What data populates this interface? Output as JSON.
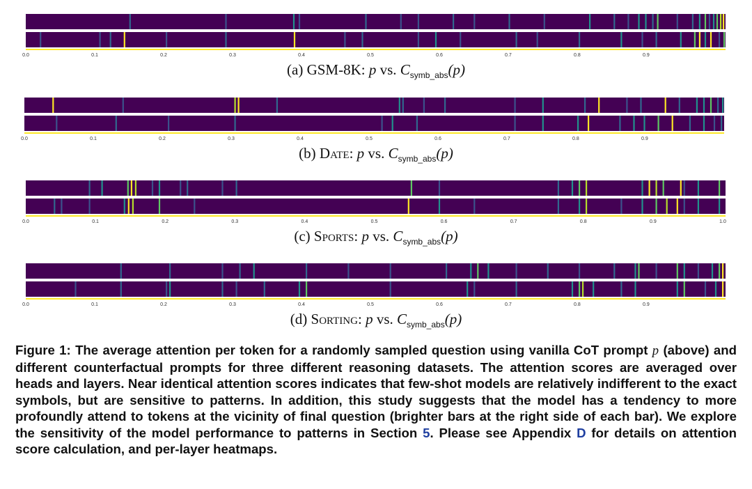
{
  "panels": [
    {
      "id": "gsm8k",
      "caption": {
        "label": "(a)",
        "dataset": "GSM-8K",
        "p": "p",
        "vs": "vs.",
        "c": "C",
        "sub": "symb_abs",
        "arg": "(p)"
      },
      "ticks": [
        "0.0",
        "0.1",
        "0.2",
        "0.3",
        "0.4",
        "0.5",
        "0.6",
        "0.7",
        "0.8",
        "0.9"
      ],
      "rows": [
        {
          "lines": [
            [
              0.148,
              "#31688e"
            ],
            [
              0.285,
              "#3b528b"
            ],
            [
              0.382,
              "#21918c"
            ],
            [
              0.39,
              "#3b528b"
            ],
            [
              0.485,
              "#31688e"
            ],
            [
              0.535,
              "#3b528b"
            ],
            [
              0.56,
              "#3b528b"
            ],
            [
              0.61,
              "#31688e"
            ],
            [
              0.64,
              "#3b528b"
            ],
            [
              0.69,
              "#31688e"
            ],
            [
              0.74,
              "#3b528b"
            ],
            [
              0.805,
              "#21918c"
            ],
            [
              0.84,
              "#31688e"
            ],
            [
              0.86,
              "#3b528b"
            ],
            [
              0.875,
              "#21918c"
            ],
            [
              0.885,
              "#21918c"
            ],
            [
              0.895,
              "#31688e"
            ],
            [
              0.902,
              "#5ec962"
            ],
            [
              0.93,
              "#3b528b"
            ],
            [
              0.952,
              "#31688e"
            ],
            [
              0.962,
              "#21918c"
            ],
            [
              0.97,
              "#5ec962"
            ],
            [
              0.976,
              "#3b528b"
            ],
            [
              0.982,
              "#21918c"
            ],
            [
              0.987,
              "#5ec962"
            ],
            [
              0.992,
              "#b5de2b"
            ],
            [
              0.996,
              "#fde725"
            ]
          ]
        },
        {
          "lines": [
            [
              0.02,
              "#3b528b"
            ],
            [
              0.105,
              "#3b528b"
            ],
            [
              0.12,
              "#31688e"
            ],
            [
              0.14,
              "#fde725"
            ],
            [
              0.2,
              "#3b528b"
            ],
            [
              0.285,
              "#31688e"
            ],
            [
              0.383,
              "#fde725"
            ],
            [
              0.455,
              "#3b528b"
            ],
            [
              0.48,
              "#31688e"
            ],
            [
              0.56,
              "#3b528b"
            ],
            [
              0.585,
              "#21918c"
            ],
            [
              0.62,
              "#3b528b"
            ],
            [
              0.7,
              "#31688e"
            ],
            [
              0.73,
              "#3b528b"
            ],
            [
              0.79,
              "#31688e"
            ],
            [
              0.85,
              "#21918c"
            ],
            [
              0.88,
              "#3b528b"
            ],
            [
              0.9,
              "#31688e"
            ],
            [
              0.935,
              "#21918c"
            ],
            [
              0.955,
              "#5ec962"
            ],
            [
              0.962,
              "#fde725"
            ],
            [
              0.97,
              "#21918c"
            ],
            [
              0.978,
              "#fde725"
            ],
            [
              0.99,
              "#3b528b"
            ],
            [
              0.997,
              "#5ec962"
            ]
          ]
        }
      ]
    },
    {
      "id": "date",
      "caption": {
        "label": "(b)",
        "dataset": "Date",
        "p": "p",
        "vs": "vs.",
        "c": "C",
        "sub": "symb_abs",
        "arg": "(p)"
      },
      "ticks": [
        "0.0",
        "0.1",
        "0.2",
        "0.3",
        "0.4",
        "0.5",
        "0.6",
        "0.7",
        "0.8",
        "0.9"
      ],
      "rows": [
        {
          "lines": [
            [
              0.04,
              "#fde725"
            ],
            [
              0.14,
              "#3b528b"
            ],
            [
              0.3,
              "#b5de2b"
            ],
            [
              0.305,
              "#fde725"
            ],
            [
              0.36,
              "#31688e"
            ],
            [
              0.535,
              "#21918c"
            ],
            [
              0.54,
              "#31688e"
            ],
            [
              0.57,
              "#3b528b"
            ],
            [
              0.6,
              "#31688e"
            ],
            [
              0.7,
              "#3b528b"
            ],
            [
              0.74,
              "#21918c"
            ],
            [
              0.8,
              "#31688e"
            ],
            [
              0.82,
              "#fde725"
            ],
            [
              0.86,
              "#3b528b"
            ],
            [
              0.88,
              "#31688e"
            ],
            [
              0.915,
              "#fde725"
            ],
            [
              0.935,
              "#31688e"
            ],
            [
              0.96,
              "#21918c"
            ],
            [
              0.97,
              "#21918c"
            ],
            [
              0.98,
              "#5ec962"
            ],
            [
              0.99,
              "#31688e"
            ],
            [
              0.997,
              "#21918c"
            ]
          ]
        },
        {
          "lines": [
            [
              0.045,
              "#3b528b"
            ],
            [
              0.13,
              "#31688e"
            ],
            [
              0.205,
              "#3b528b"
            ],
            [
              0.3,
              "#31688e"
            ],
            [
              0.51,
              "#3b528b"
            ],
            [
              0.525,
              "#21918c"
            ],
            [
              0.56,
              "#31688e"
            ],
            [
              0.7,
              "#3b528b"
            ],
            [
              0.74,
              "#21918c"
            ],
            [
              0.79,
              "#21918c"
            ],
            [
              0.805,
              "#fde725"
            ],
            [
              0.85,
              "#31688e"
            ],
            [
              0.87,
              "#21918c"
            ],
            [
              0.885,
              "#21918c"
            ],
            [
              0.905,
              "#5ec962"
            ],
            [
              0.925,
              "#fde725"
            ],
            [
              0.95,
              "#31688e"
            ],
            [
              0.97,
              "#21918c"
            ],
            [
              0.985,
              "#3b528b"
            ],
            [
              0.995,
              "#31688e"
            ]
          ]
        }
      ]
    },
    {
      "id": "sports",
      "caption": {
        "label": "(c)",
        "dataset": "Sports",
        "p": "p",
        "vs": "vs.",
        "c": "C",
        "sub": "symb_abs",
        "arg": "(p)"
      },
      "ticks": [
        "0.0",
        "0.1",
        "0.2",
        "0.3",
        "0.4",
        "0.5",
        "0.6",
        "0.7",
        "0.8",
        "0.9",
        "1.0"
      ],
      "rows": [
        {
          "lines": [
            [
              0.09,
              "#31688e"
            ],
            [
              0.108,
              "#21918c"
            ],
            [
              0.145,
              "#5ec962"
            ],
            [
              0.15,
              "#fde725"
            ],
            [
              0.156,
              "#b5de2b"
            ],
            [
              0.18,
              "#3b528b"
            ],
            [
              0.19,
              "#21918c"
            ],
            [
              0.22,
              "#3b528b"
            ],
            [
              0.23,
              "#31688e"
            ],
            [
              0.28,
              "#3b528b"
            ],
            [
              0.3,
              "#31688e"
            ],
            [
              0.55,
              "#5ec962"
            ],
            [
              0.59,
              "#3b528b"
            ],
            [
              0.76,
              "#31688e"
            ],
            [
              0.78,
              "#21918c"
            ],
            [
              0.79,
              "#5ec962"
            ],
            [
              0.8,
              "#b5de2b"
            ],
            [
              0.88,
              "#21918c"
            ],
            [
              0.89,
              "#fde725"
            ],
            [
              0.9,
              "#b5de2b"
            ],
            [
              0.91,
              "#5ec962"
            ],
            [
              0.935,
              "#fde725"
            ],
            [
              0.94,
              "#3b528b"
            ],
            [
              0.96,
              "#21918c"
            ],
            [
              0.99,
              "#5ec962"
            ]
          ]
        },
        {
          "lines": [
            [
              0.04,
              "#31688e"
            ],
            [
              0.05,
              "#3b528b"
            ],
            [
              0.09,
              "#3b528b"
            ],
            [
              0.14,
              "#21918c"
            ],
            [
              0.146,
              "#fde725"
            ],
            [
              0.152,
              "#b5de2b"
            ],
            [
              0.19,
              "#5ec962"
            ],
            [
              0.24,
              "#3b528b"
            ],
            [
              0.546,
              "#fde725"
            ],
            [
              0.59,
              "#21918c"
            ],
            [
              0.64,
              "#3b528b"
            ],
            [
              0.76,
              "#31688e"
            ],
            [
              0.79,
              "#21918c"
            ],
            [
              0.8,
              "#b5de2b"
            ],
            [
              0.85,
              "#3b528b"
            ],
            [
              0.88,
              "#21918c"
            ],
            [
              0.9,
              "#5ec962"
            ],
            [
              0.915,
              "#b5de2b"
            ],
            [
              0.93,
              "#fde725"
            ],
            [
              0.94,
              "#3b528b"
            ],
            [
              0.96,
              "#21918c"
            ],
            [
              0.99,
              "#21918c"
            ]
          ]
        }
      ]
    },
    {
      "id": "sorting",
      "caption": {
        "label": "(d)",
        "dataset": "Sorting",
        "p": "p",
        "vs": "vs.",
        "c": "C",
        "sub": "symb_abs",
        "arg": "(p)"
      },
      "ticks": [
        "0.0",
        "0.1",
        "0.2",
        "0.3",
        "0.4",
        "0.5",
        "0.6",
        "0.7",
        "0.8",
        "0.9"
      ],
      "rows": [
        {
          "lines": [
            [
              0.135,
              "#31688e"
            ],
            [
              0.205,
              "#31688e"
            ],
            [
              0.28,
              "#3b528b"
            ],
            [
              0.305,
              "#31688e"
            ],
            [
              0.325,
              "#21918c"
            ],
            [
              0.4,
              "#31688e"
            ],
            [
              0.46,
              "#3b528b"
            ],
            [
              0.52,
              "#3b528b"
            ],
            [
              0.6,
              "#31688e"
            ],
            [
              0.635,
              "#21918c"
            ],
            [
              0.645,
              "#5ec962"
            ],
            [
              0.66,
              "#21918c"
            ],
            [
              0.7,
              "#3b528b"
            ],
            [
              0.745,
              "#31688e"
            ],
            [
              0.79,
              "#3b528b"
            ],
            [
              0.84,
              "#31688e"
            ],
            [
              0.87,
              "#21918c"
            ],
            [
              0.875,
              "#5ec962"
            ],
            [
              0.9,
              "#3b528b"
            ],
            [
              0.93,
              "#5ec962"
            ],
            [
              0.94,
              "#21918c"
            ],
            [
              0.96,
              "#3b528b"
            ],
            [
              0.98,
              "#21918c"
            ],
            [
              0.99,
              "#5ec962"
            ],
            [
              0.995,
              "#fde725"
            ]
          ]
        },
        {
          "lines": [
            [
              0.07,
              "#3b528b"
            ],
            [
              0.135,
              "#31688e"
            ],
            [
              0.2,
              "#3b528b"
            ],
            [
              0.205,
              "#21918c"
            ],
            [
              0.28,
              "#31688e"
            ],
            [
              0.3,
              "#3b528b"
            ],
            [
              0.34,
              "#31688e"
            ],
            [
              0.39,
              "#21918c"
            ],
            [
              0.4,
              "#5ec962"
            ],
            [
              0.52,
              "#3b528b"
            ],
            [
              0.63,
              "#21918c"
            ],
            [
              0.64,
              "#3b528b"
            ],
            [
              0.7,
              "#31688e"
            ],
            [
              0.78,
              "#21918c"
            ],
            [
              0.79,
              "#5ec962"
            ],
            [
              0.795,
              "#b5de2b"
            ],
            [
              0.81,
              "#21918c"
            ],
            [
              0.85,
              "#31688e"
            ],
            [
              0.87,
              "#21918c"
            ],
            [
              0.93,
              "#21918c"
            ],
            [
              0.94,
              "#5ec962"
            ],
            [
              0.97,
              "#3b528b"
            ],
            [
              0.985,
              "#21918c"
            ],
            [
              0.995,
              "#fde725"
            ]
          ]
        }
      ]
    }
  ],
  "figure_caption": {
    "part1": "Figure 1: The average attention per token for a randomly sampled question using vanilla CoT prompt ",
    "p": "p",
    "part2": " (above) and different counterfactual prompts for three different reasoning datasets. The attention scores are averaged over heads and layers. Near identical attention scores indicates that few-shot models are relatively indifferent to the exact symbols, but are sensitive to patterns. In addition, this study suggests that the model has a tendency to more profoundly attend to tokens at the vicinity of final question (brighter bars at the right side of each bar). We explore the sensitivity of the model performance to patterns in Section ",
    "ref1": "5",
    "part3": ". Please see Appendix ",
    "ref2": "D",
    "part4": " for details on attention score calculation, and per-layer heatmaps."
  },
  "colors": {
    "base": "#440154",
    "accent": "#fde725"
  }
}
